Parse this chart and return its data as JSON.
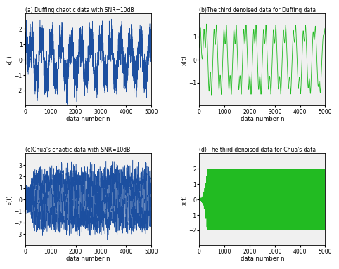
{
  "subplot_a": {
    "title": "(a) Duffing chaotic data with SNR=10dB",
    "xlabel": "data number n",
    "ylabel": "x(t)",
    "color": "#1c4fa0",
    "xlim": [
      0,
      5000
    ],
    "ylim": [
      -3,
      3
    ],
    "yticks": [
      -2,
      -1,
      0,
      1,
      2
    ],
    "xticks": [
      0,
      1000,
      2000,
      3000,
      4000,
      5000
    ]
  },
  "subplot_b": {
    "title": "(b)The third denoised data for Duffing data",
    "xlabel": "data number n",
    "ylabel": "x(t)",
    "color": "#22bb22",
    "xlim": [
      0,
      5000
    ],
    "ylim": [
      -2,
      2
    ],
    "yticks": [
      -1,
      0,
      1
    ],
    "xticks": [
      0,
      1000,
      2000,
      3000,
      4000,
      5000
    ]
  },
  "subplot_c": {
    "title": "(c)Chua's chaotic data with SNR=10dB",
    "xlabel": "data number n",
    "ylabel": "x(t)",
    "color": "#1c4fa0",
    "xlim": [
      0,
      5000
    ],
    "ylim": [
      -4,
      4
    ],
    "yticks": [
      -3,
      -2,
      -1,
      0,
      1,
      2,
      3
    ],
    "xticks": [
      0,
      1000,
      2000,
      3000,
      4000,
      5000
    ]
  },
  "subplot_d": {
    "title": "(d) The third denoised data for Chua's data",
    "xlabel": "data number n",
    "ylabel": "x(t)",
    "color": "#22bb22",
    "xlim": [
      0,
      5000
    ],
    "ylim": [
      -3,
      3
    ],
    "yticks": [
      -2,
      -1,
      0,
      1,
      2
    ],
    "xticks": [
      0,
      1000,
      2000,
      3000,
      4000,
      5000
    ]
  },
  "figsize": [
    4.74,
    3.75
  ],
  "dpi": 100
}
